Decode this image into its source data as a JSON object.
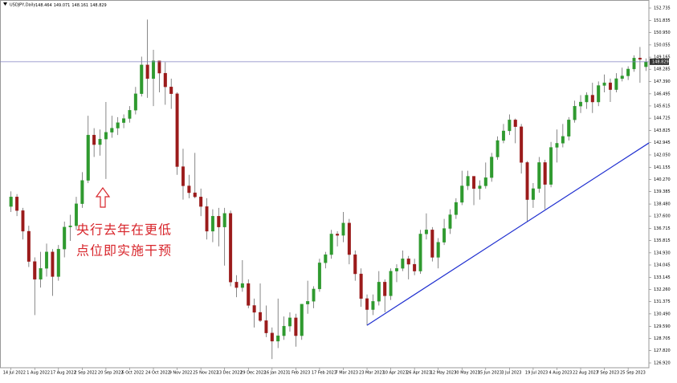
{
  "chart_data": {
    "type": "candlestick",
    "symbol": "USDJPY,Daily",
    "annotation": [
      "央行去年在更低",
      "点位即实施干预"
    ],
    "bull_color": "#2f9a2f",
    "bear_color": "#9b1b1b",
    "wick_color": "#555555",
    "price_line_color": "#8080c0",
    "trendline_color": "#1f2fd0",
    "ylim": [
      126.57,
      153.32
    ],
    "yticks": [
      152.735,
      151.835,
      {
        "value": 150.95,
        "label": "150.950"
      },
      {
        "value": 150.055,
        "label": "150.055"
      },
      149.165,
      148.285,
      {
        "value": 147.39,
        "label": "147.390"
      },
      146.495,
      145.615,
      144.725,
      143.825,
      142.945,
      {
        "value": 142.05,
        "label": "142.050"
      },
      141.155,
      {
        "value": 140.27,
        "label": "140.270"
      },
      139.385,
      {
        "value": 138.48,
        "label": "138.480"
      },
      {
        "value": 137.6,
        "label": "137.600"
      },
      136.715,
      135.815,
      {
        "value": 134.93,
        "label": "134.930"
      },
      134.045,
      133.145,
      {
        "value": 132.26,
        "label": "132.260"
      },
      131.375,
      {
        "value": 130.49,
        "label": "130.490"
      },
      {
        "value": 129.59,
        "label": "129.590"
      },
      128.705,
      {
        "value": 127.82,
        "label": "127.820"
      },
      {
        "value": 126.92,
        "label": "126.920"
      }
    ],
    "categories": [
      "14 Jul 2022",
      null,
      null,
      null,
      "1 Aug 2022",
      null,
      null,
      null,
      "17 Aug 2022",
      null,
      null,
      null,
      "2 Sep 2022",
      null,
      null,
      null,
      "20 Sep 2022",
      null,
      null,
      null,
      "6 Oct 2022",
      null,
      null,
      null,
      "24 Oct 2022",
      null,
      null,
      null,
      "9 Nov 2022",
      null,
      null,
      null,
      "25 Nov 2022",
      null,
      null,
      null,
      "13 Dec 2022",
      null,
      null,
      null,
      "29 Dec 2022",
      null,
      null,
      null,
      "16 Jan 2023",
      null,
      null,
      null,
      "1 Feb 2023",
      null,
      null,
      null,
      "17 Feb 2023",
      null,
      null,
      null,
      "7 Mar 2023",
      null,
      null,
      null,
      "23 Mar 2023",
      null,
      null,
      null,
      "10 Apr 2023",
      null,
      null,
      null,
      "26 Apr 2023",
      null,
      null,
      null,
      "12 May 2023",
      null,
      null,
      null,
      "30 May 2023",
      null,
      null,
      null,
      "15 Jun 2023",
      null,
      null,
      null,
      "3 Jul 2023",
      null,
      null,
      null,
      "19 Jul 2023",
      null,
      null,
      null,
      "4 Aug 2023",
      null,
      null,
      null,
      "22 Aug 2023",
      null,
      null,
      null,
      "7 Sep 2023",
      null,
      null,
      null,
      "25 Sep 2023",
      null,
      null,
      null
    ],
    "candles": [
      [
        138.3,
        139.4,
        137.9,
        139.0
      ],
      [
        139.0,
        139.2,
        137.6,
        138.0
      ],
      [
        138.0,
        138.2,
        135.9,
        136.5
      ],
      [
        136.5,
        136.9,
        133.9,
        134.3
      ],
      [
        134.3,
        134.6,
        130.4,
        133.0
      ],
      [
        133.0,
        135.0,
        132.4,
        133.8
      ],
      [
        133.8,
        135.6,
        133.2,
        135.0
      ],
      [
        135.0,
        135.2,
        131.8,
        133.2
      ],
      [
        133.2,
        135.5,
        132.9,
        135.2
      ],
      [
        135.2,
        137.2,
        134.6,
        136.8
      ],
      [
        136.8,
        137.7,
        135.8,
        136.9
      ],
      [
        136.9,
        139.0,
        136.6,
        138.5
      ],
      [
        138.5,
        140.8,
        138.2,
        140.2
      ],
      [
        140.2,
        144.9,
        140.0,
        143.5
      ],
      [
        143.5,
        144.0,
        141.9,
        142.8
      ],
      [
        142.8,
        143.9,
        142.0,
        143.2
      ],
      [
        143.2,
        145.9,
        140.3,
        143.7
      ],
      [
        143.7,
        144.9,
        143.3,
        144.0
      ],
      [
        144.0,
        144.8,
        143.5,
        144.4
      ],
      [
        144.4,
        145.0,
        144.0,
        144.7
      ],
      [
        144.7,
        145.6,
        144.4,
        145.3
      ],
      [
        145.3,
        147.0,
        145.0,
        146.5
      ],
      [
        146.5,
        149.2,
        146.3,
        148.6
      ],
      [
        148.6,
        151.9,
        146.2,
        147.6
      ],
      [
        147.6,
        149.7,
        145.6,
        148.9
      ],
      [
        148.9,
        148.9,
        146.6,
        148.0
      ],
      [
        148.0,
        148.8,
        145.7,
        147.0
      ],
      [
        147.0,
        147.6,
        145.4,
        146.5
      ],
      [
        146.5,
        146.6,
        140.6,
        141.2
      ],
      [
        141.2,
        142.5,
        138.8,
        139.8
      ],
      [
        139.8,
        140.6,
        138.9,
        139.3
      ],
      [
        139.3,
        142.2,
        138.9,
        139.0
      ],
      [
        139.0,
        139.6,
        137.6,
        138.3
      ],
      [
        138.3,
        138.9,
        135.9,
        136.5
      ],
      [
        136.5,
        138.1,
        135.7,
        137.6
      ],
      [
        137.6,
        138.2,
        135.4,
        136.8
      ],
      [
        136.8,
        138.2,
        134.0,
        137.8
      ],
      [
        137.8,
        138.0,
        132.5,
        132.8
      ],
      [
        132.8,
        133.3,
        131.7,
        132.4
      ],
      [
        132.4,
        134.4,
        132.1,
        132.7
      ],
      [
        132.7,
        133.0,
        130.9,
        131.1
      ],
      [
        131.1,
        131.6,
        129.5,
        130.6
      ],
      [
        130.6,
        132.7,
        129.9,
        130.0
      ],
      [
        130.0,
        131.1,
        128.8,
        129.1
      ],
      [
        129.1,
        129.5,
        127.2,
        128.5
      ],
      [
        128.5,
        131.6,
        128.0,
        128.9
      ],
      [
        128.9,
        130.3,
        128.6,
        129.6
      ],
      [
        129.6,
        130.6,
        129.2,
        130.2
      ],
      [
        130.2,
        130.5,
        128.1,
        128.9
      ],
      [
        128.9,
        131.2,
        128.6,
        131.2
      ],
      [
        131.2,
        132.9,
        130.5,
        131.4
      ],
      [
        131.4,
        132.5,
        130.9,
        132.3
      ],
      [
        132.3,
        134.5,
        132.1,
        134.2
      ],
      [
        134.2,
        135.0,
        133.8,
        134.8
      ],
      [
        134.8,
        136.6,
        134.5,
        136.3
      ],
      [
        136.3,
        136.5,
        135.4,
        136.2
      ],
      [
        136.2,
        137.9,
        135.7,
        137.1
      ],
      [
        137.1,
        137.4,
        134.1,
        134.8
      ],
      [
        134.8,
        135.1,
        132.9,
        133.4
      ],
      [
        133.4,
        133.8,
        131.0,
        131.6
      ],
      [
        131.6,
        131.9,
        129.65,
        130.8
      ],
      [
        130.8,
        131.9,
        130.4,
        131.4
      ],
      [
        131.4,
        133.6,
        131.1,
        132.8
      ],
      [
        132.8,
        133.0,
        130.6,
        131.8
      ],
      [
        131.8,
        133.8,
        131.5,
        133.6
      ],
      [
        133.6,
        134.1,
        132.8,
        133.8
      ],
      [
        133.8,
        135.1,
        133.6,
        134.5
      ],
      [
        134.5,
        134.7,
        133.0,
        134.1
      ],
      [
        134.1,
        134.5,
        133.3,
        133.6
      ],
      [
        133.6,
        136.6,
        133.4,
        136.3
      ],
      [
        136.3,
        137.8,
        135.9,
        136.6
      ],
      [
        136.6,
        136.8,
        134.3,
        134.6
      ],
      [
        134.6,
        136.0,
        133.8,
        135.7
      ],
      [
        135.7,
        137.4,
        135.5,
        136.7
      ],
      [
        136.7,
        138.1,
        136.3,
        137.7
      ],
      [
        137.7,
        138.9,
        137.4,
        138.6
      ],
      [
        138.6,
        140.9,
        138.4,
        139.8
      ],
      [
        139.8,
        140.9,
        139.5,
        140.5
      ],
      [
        140.5,
        140.5,
        138.4,
        139.6
      ],
      [
        139.6,
        140.2,
        138.8,
        139.8
      ],
      [
        139.8,
        141.5,
        139.6,
        140.4
      ],
      [
        140.4,
        142.2,
        140.1,
        141.9
      ],
      [
        141.9,
        143.4,
        141.7,
        143.1
      ],
      [
        143.1,
        144.3,
        142.9,
        143.8
      ],
      [
        143.8,
        145.0,
        143.5,
        144.6
      ],
      [
        144.6,
        144.7,
        142.9,
        144.1
      ],
      [
        144.1,
        144.3,
        140.7,
        141.5
      ],
      [
        141.5,
        141.6,
        137.2,
        138.8
      ],
      [
        138.8,
        140.0,
        138.2,
        139.6
      ],
      [
        139.6,
        141.9,
        139.3,
        141.5
      ],
      [
        141.5,
        141.7,
        138.1,
        139.9
      ],
      [
        139.9,
        143.0,
        139.7,
        142.6
      ],
      [
        142.6,
        143.9,
        141.5,
        142.9
      ],
      [
        142.9,
        144.3,
        142.6,
        143.4
      ],
      [
        143.4,
        144.8,
        143.1,
        144.6
      ],
      [
        144.6,
        146.0,
        144.4,
        145.6
      ],
      [
        145.6,
        146.4,
        145.1,
        145.9
      ],
      [
        145.9,
        146.6,
        145.4,
        146.4
      ],
      [
        146.4,
        147.3,
        145.1,
        145.9
      ],
      [
        145.9,
        147.4,
        145.6,
        147.1
      ],
      [
        147.1,
        147.9,
        146.6,
        147.3
      ],
      [
        147.3,
        147.6,
        145.9,
        146.8
      ],
      [
        146.8,
        148.0,
        146.6,
        147.6
      ],
      [
        147.6,
        148.4,
        147.4,
        147.8
      ],
      [
        147.8,
        148.5,
        147.5,
        148.3
      ],
      [
        148.3,
        149.3,
        148.1,
        149.1
      ],
      [
        149.1,
        149.9,
        147.3,
        149.0
      ],
      [
        148.464,
        149.071,
        148.161,
        148.829
      ]
    ],
    "trendline": {
      "start": "23 Mar 2023",
      "y": [
        129.66,
        142.92
      ]
    }
  }
}
